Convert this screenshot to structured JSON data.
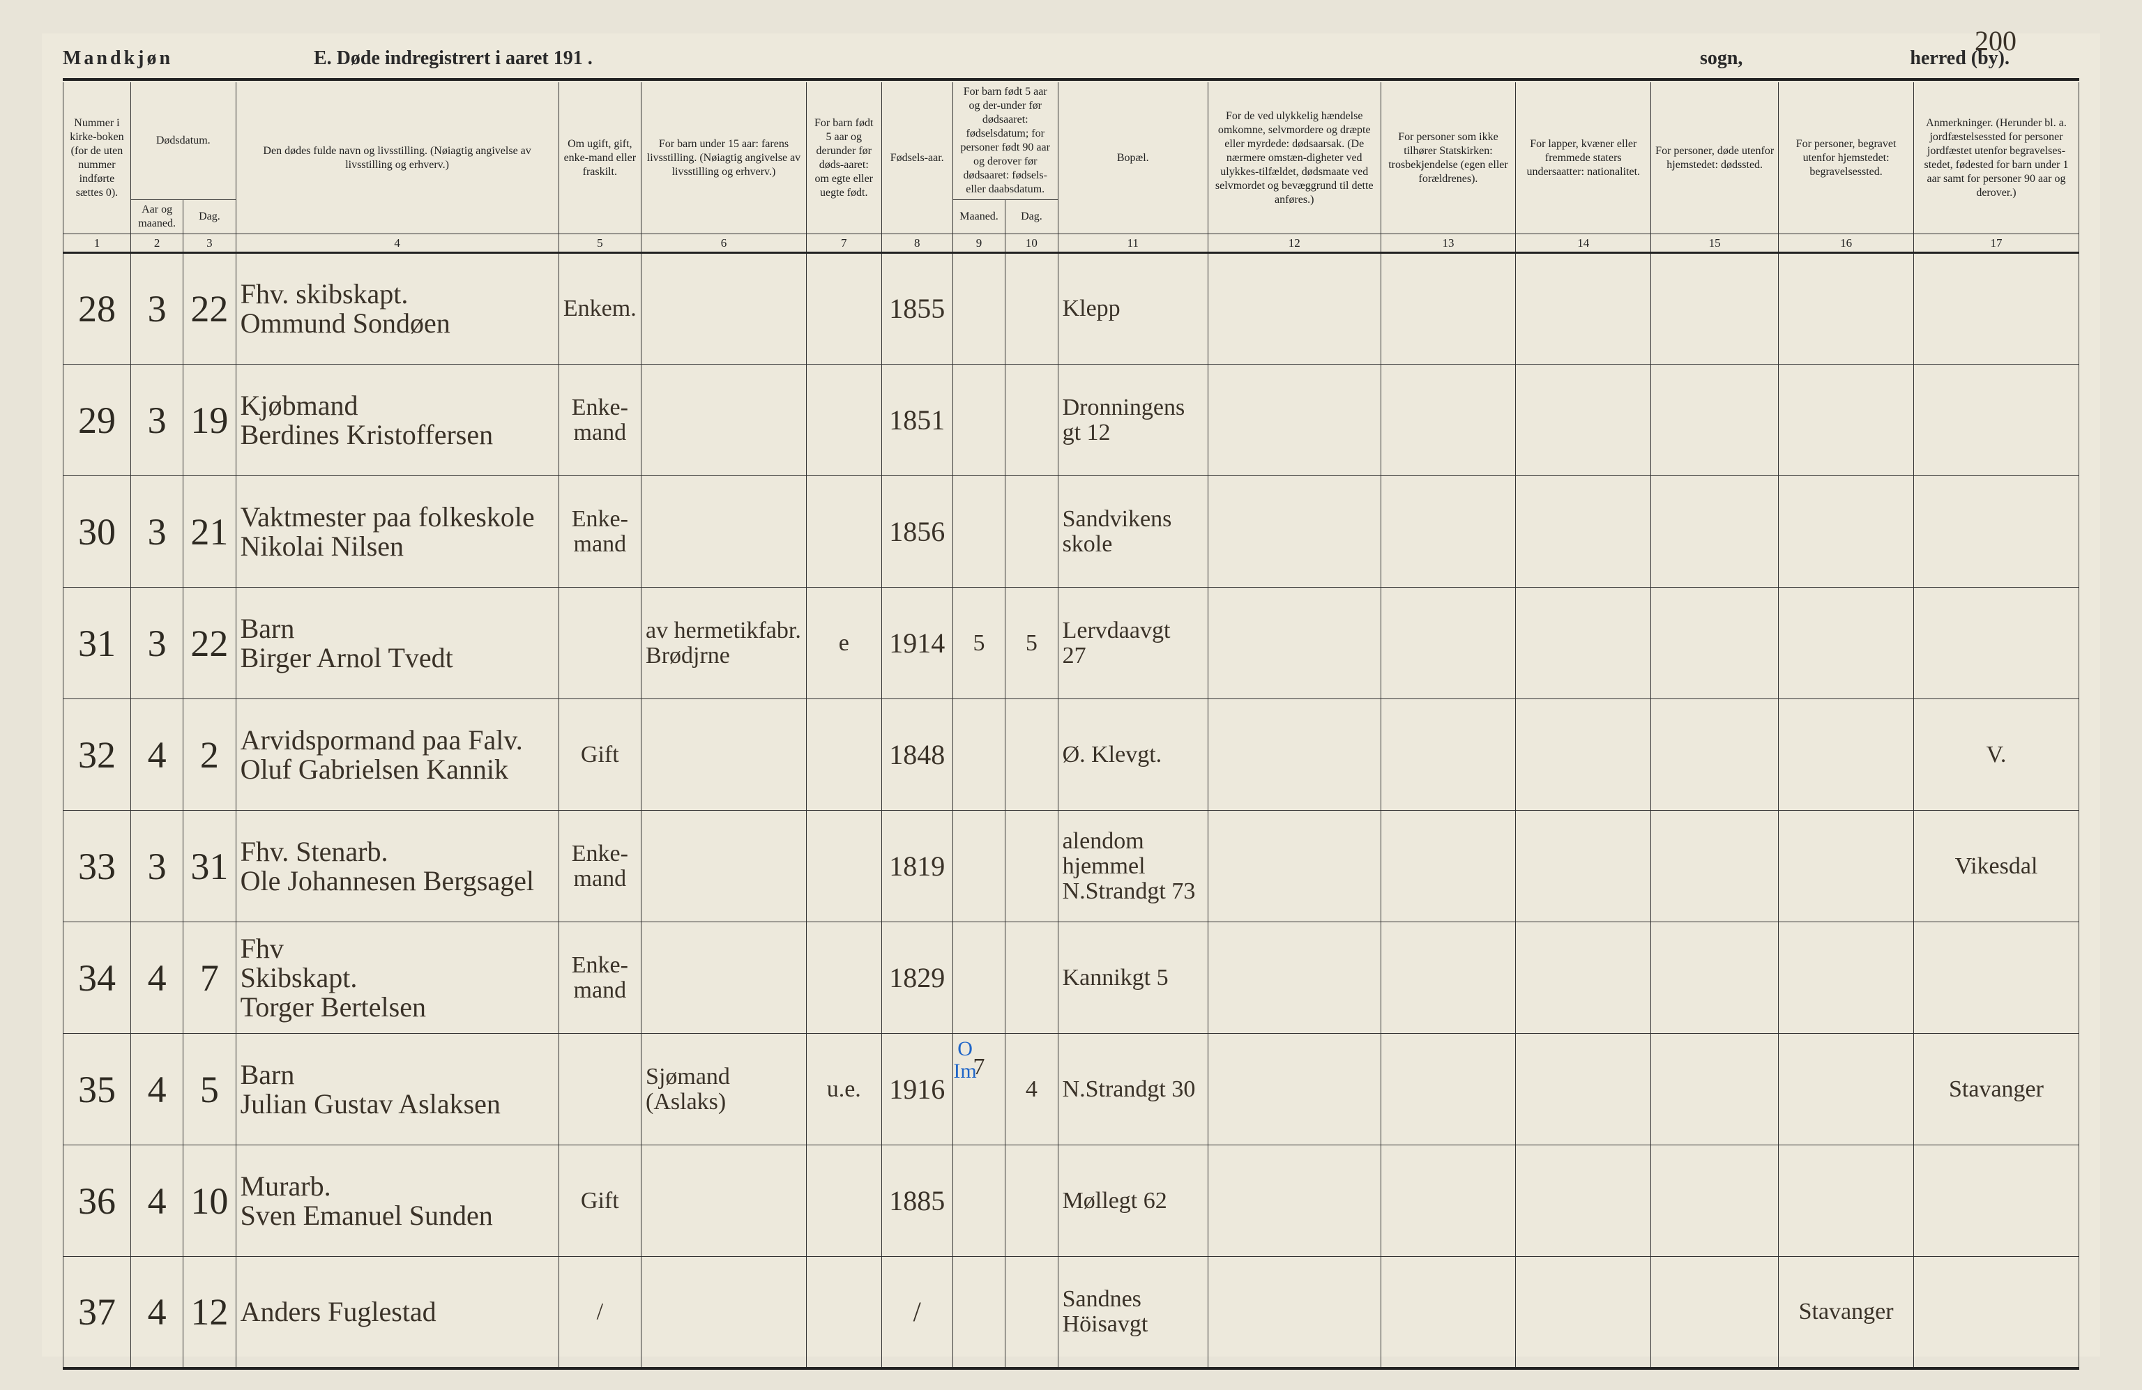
{
  "page_number": "200",
  "header": {
    "gender": "Mandkjøn",
    "title": "E.   Døde indregistrert i aaret 191    .",
    "sogn_label": "sogn,",
    "herred_label": "herred (by)."
  },
  "columns": {
    "h1": "Nummer i kirke-boken (for de uten nummer indførte sættes 0).",
    "h2_top": "Dødsdatum.",
    "h2a": "Aar og maaned.",
    "h2b": "Dag.",
    "h4": "Den dødes fulde navn og livsstilling.\n(Nøiagtig angivelse av livsstilling og erhverv.)",
    "h5": "Om ugift, gift, enke-mand eller fraskilt.",
    "h6": "For barn under 15 aar: farens livsstilling.\n(Nøiagtig angivelse av livsstilling og erhverv.)",
    "h7": "For barn født 5 aar og derunder før døds-aaret: om egte eller uegte født.",
    "h8": "Fødsels-aar.",
    "h9_top": "For barn født 5 aar og der-under før dødsaaret: fødselsdatum; for personer født 90 aar og derover før dødsaaret: fødsels- eller daabsdatum.",
    "h9a": "Maaned.",
    "h9b": "Dag.",
    "h11": "Bopæl.",
    "h12": "For de ved ulykkelig hændelse omkomne, selvmordere og dræpte eller myrdede: dødsaarsak.\n(De nærmere omstæn-digheter ved ulykkes-tilfældet, dødsmaate ved selvmordet og bevæggrund til dette anføres.)",
    "h13": "For personer som ikke tilhører Statskirken: trosbekjendelse (egen eller forældrenes).",
    "h14": "For lapper, kvæner eller fremmede staters undersaatter: nationalitet.",
    "h15": "For personer, døde utenfor hjemstedet: dødssted.",
    "h16": "For personer, begravet utenfor hjemstedet: begravelsessted.",
    "h17": "Anmerkninger.\n(Herunder bl. a. jordfæstelsessted for personer jordfæstet utenfor begravelses-stedet, fødested for barn under 1 aar samt for personer 90 aar og derover.)"
  },
  "colnums": [
    "1",
    "2",
    "3",
    "4",
    "5",
    "6",
    "7",
    "8",
    "9",
    "10",
    "11",
    "12",
    "13",
    "14",
    "15",
    "16",
    "17"
  ],
  "rows": [
    {
      "n": "28",
      "m": "3",
      "d": "22",
      "name": "Fhv. skibskapt.\nOmmund Sondøen",
      "status": "Enkem.",
      "father": "",
      "egte": "",
      "year": "1855",
      "bm": "",
      "bd": "",
      "bopael": "Klepp",
      "c12": "",
      "c13": "",
      "c14": "",
      "c15": "",
      "c16": "",
      "c17": ""
    },
    {
      "n": "29",
      "m": "3",
      "d": "19",
      "name": "Kjøbmand\nBerdines Kristoffersen",
      "status": "Enke-\nmand",
      "father": "",
      "egte": "",
      "year": "1851",
      "bm": "",
      "bd": "",
      "bopael": "Dronningens\ngt 12",
      "c12": "",
      "c13": "",
      "c14": "",
      "c15": "",
      "c16": "",
      "c17": ""
    },
    {
      "n": "30",
      "m": "3",
      "d": "21",
      "name": "Vaktmester paa folkeskole\nNikolai Nilsen",
      "status": "Enke-\nmand",
      "father": "",
      "egte": "",
      "year": "1856",
      "bm": "",
      "bd": "",
      "bopael": "Sandvikens\nskole",
      "c12": "",
      "c13": "",
      "c14": "",
      "c15": "",
      "c16": "",
      "c17": ""
    },
    {
      "n": "31",
      "m": "3",
      "d": "22",
      "name": "Barn\nBirger Arnol Tvedt",
      "status": "",
      "father": "av hermetikfabr.\nBrødjrne",
      "egte": "e",
      "year": "1914",
      "bm": "5",
      "bd": "5",
      "bopael": "Lervdaavgt\n27",
      "c12": "",
      "c13": "",
      "c14": "",
      "c15": "",
      "c16": "",
      "c17": ""
    },
    {
      "n": "32",
      "m": "4",
      "d": "2",
      "name": "Arvidspormand paa Falv.\nOluf Gabrielsen Kannik",
      "status": "Gift",
      "father": "",
      "egte": "",
      "year": "1848",
      "bm": "",
      "bd": "",
      "bopael": "Ø. Klevgt.",
      "c12": "",
      "c13": "",
      "c14": "",
      "c15": "",
      "c16": "",
      "c17": "V."
    },
    {
      "n": "33",
      "m": "3",
      "d": "31",
      "name": "Fhv. Stenarb.\nOle Johannesen Bergsagel",
      "status": "Enke-\nmand",
      "father": "",
      "egte": "",
      "year": "1819",
      "bm": "",
      "bd": "",
      "bopael": "alendom\nhjemmel\nN.Strandgt 73",
      "c12": "",
      "c13": "",
      "c14": "",
      "c15": "",
      "c16": "",
      "c17": "Vikesdal"
    },
    {
      "n": "34",
      "m": "4",
      "d": "7",
      "name": "Fhv\nSkibskapt.\nTorger Bertelsen",
      "status": "Enke-\nmand",
      "father": "",
      "egte": "",
      "year": "1829",
      "bm": "",
      "bd": "",
      "bopael": "Kannikgt 5",
      "c12": "",
      "c13": "",
      "c14": "",
      "c15": "",
      "c16": "",
      "c17": ""
    },
    {
      "n": "35",
      "m": "4",
      "d": "5",
      "name": "Barn\nJulian Gustav Aslaksen",
      "status": "",
      "father": "Sjømand (Aslaks)",
      "egte": "u.e.",
      "year": "1916",
      "bm": "7",
      "bd": "4",
      "bopael": "N.Strandgt 30",
      "blue": "O Im",
      "c12": "",
      "c13": "",
      "c14": "",
      "c15": "",
      "c16": "",
      "c17": "Stavanger"
    },
    {
      "n": "36",
      "m": "4",
      "d": "10",
      "name": "Murarb.\nSven Emanuel Sunden",
      "status": "Gift",
      "father": "",
      "egte": "",
      "year": "1885",
      "bm": "",
      "bd": "",
      "bopael": "Møllegt 62",
      "c12": "",
      "c13": "",
      "c14": "",
      "c15": "",
      "c16": "",
      "c17": ""
    },
    {
      "n": "37",
      "m": "4",
      "d": "12",
      "name": "Anders Fuglestad",
      "status": "/",
      "father": "",
      "egte": "",
      "year": "/",
      "bm": "",
      "bd": "",
      "bopael": "Sandnes\nHöisavgt",
      "c12": "",
      "c13": "",
      "c14": "",
      "c15": "",
      "c16": "Stavanger",
      "c17": ""
    }
  ]
}
